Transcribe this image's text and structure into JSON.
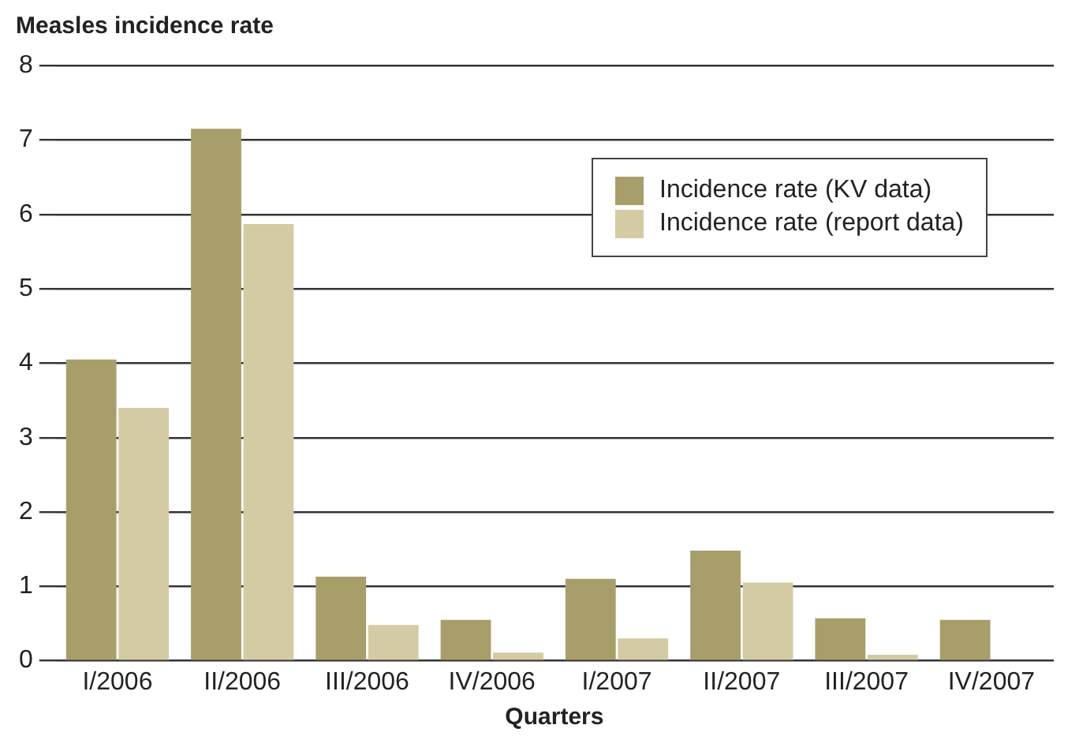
{
  "chart_data": {
    "type": "bar",
    "ylabel": "Measles incidence rate",
    "xlabel": "Quarters",
    "categories": [
      "I/2006",
      "II/2006",
      "III/2006",
      "IV/2006",
      "I/2007",
      "II/2007",
      "III/2007",
      "IV/2007"
    ],
    "series": [
      {
        "name": "Incidence rate (KV data)",
        "color": "#a89e6a",
        "values": [
          4.05,
          7.15,
          1.13,
          0.55,
          1.1,
          1.48,
          0.57,
          0.55
        ]
      },
      {
        "name": "Incidence rate (report data)",
        "color": "#d4cba4",
        "values": [
          3.4,
          5.87,
          0.48,
          0.11,
          0.3,
          1.05,
          0.08,
          0
        ]
      }
    ],
    "ylim": [
      0,
      8
    ],
    "yticks": [
      0,
      1,
      2,
      3,
      4,
      5,
      6,
      7,
      8
    ],
    "grid": "y",
    "legend": "top right"
  }
}
